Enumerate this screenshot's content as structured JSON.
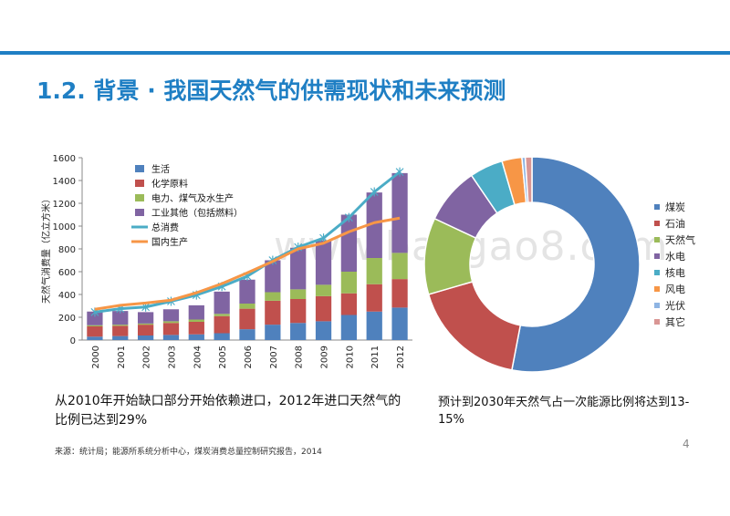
{
  "slide": {
    "title": "1.2. 背景 · 我国天然气的供需现状和未来预测",
    "watermark": "www.baogao8.com",
    "caption_left": "从2010年开始缺口部分开始依赖进口，2012年进口天然气的比例已达到29%",
    "caption_right": "预计到2030年天然气占一次能源比例将达到13-15%",
    "source": "来源：统计局；能源所系统分析中心，煤炭消费总量控制研究报告，2014",
    "page_number": "4"
  },
  "chart_data": [
    {
      "type": "bar",
      "subtype": "stacked-bar-with-lines",
      "ylabel": "天然气消费量（亿立方米）",
      "ylim": [
        0,
        1600
      ],
      "yticks": [
        0,
        200,
        400,
        600,
        800,
        1000,
        1200,
        1400,
        1600
      ],
      "categories": [
        "2000",
        "2001",
        "2002",
        "2003",
        "2004",
        "2005",
        "2006",
        "2007",
        "2008",
        "2009",
        "2010",
        "2011",
        "2012"
      ],
      "legend_position": "top-left",
      "series": [
        {
          "name": "生活",
          "kind": "bar",
          "color": "#4f81bd",
          "values": [
            30,
            35,
            40,
            45,
            50,
            60,
            95,
            135,
            150,
            165,
            220,
            250,
            285
          ]
        },
        {
          "name": "化学原料",
          "kind": "bar",
          "color": "#c0504d",
          "values": [
            90,
            90,
            95,
            105,
            110,
            150,
            180,
            210,
            210,
            220,
            190,
            240,
            250
          ]
        },
        {
          "name": "电力、煤气及水生产",
          "kind": "bar",
          "color": "#9bbb59",
          "values": [
            10,
            10,
            10,
            15,
            20,
            20,
            45,
            75,
            85,
            100,
            190,
            230,
            230
          ]
        },
        {
          "name": "工业其他（包括燃料）",
          "kind": "bar",
          "color": "#8064a2",
          "values": [
            120,
            120,
            100,
            105,
            125,
            195,
            210,
            280,
            365,
            390,
            500,
            575,
            700
          ]
        },
        {
          "name": "总消费",
          "kind": "line",
          "color": "#4bacc6",
          "values": [
            245,
            275,
            290,
            340,
            395,
            470,
            560,
            700,
            815,
            895,
            1075,
            1300,
            1475
          ]
        },
        {
          "name": "国内生产",
          "kind": "line",
          "color": "#f79646",
          "values": [
            270,
            305,
            325,
            350,
            415,
            495,
            590,
            690,
            800,
            850,
            950,
            1030,
            1070
          ]
        }
      ]
    },
    {
      "type": "pie",
      "subtype": "donut",
      "legend_position": "right",
      "labels": [
        "煤炭",
        "石油",
        "天然气",
        "水电",
        "核电",
        "风电",
        "光伏",
        "其它"
      ],
      "values": [
        53,
        17.5,
        11.5,
        8.5,
        5,
        3,
        0.5,
        1
      ],
      "colors": [
        "#4f81bd",
        "#c0504d",
        "#9bbb59",
        "#8064a2",
        "#4bacc6",
        "#f79646",
        "#8eb4e3",
        "#d99694"
      ]
    }
  ]
}
